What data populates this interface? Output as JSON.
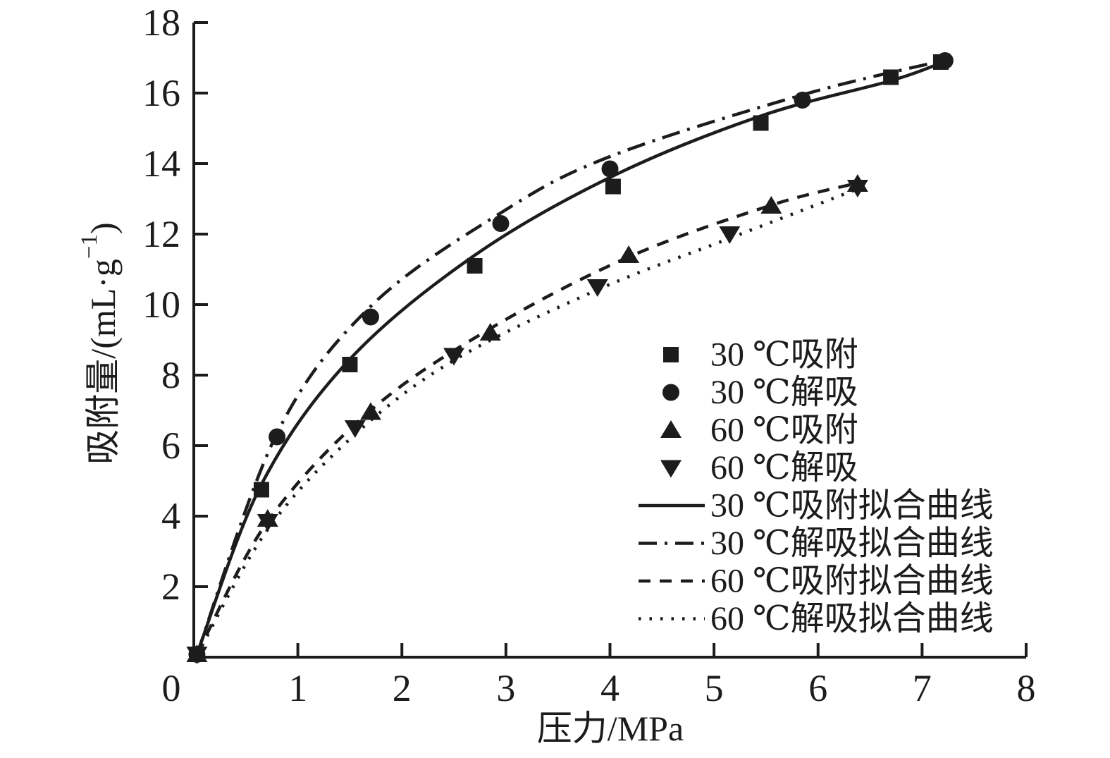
{
  "figure": {
    "background": "#ffffff",
    "ink_color": "#1c1c1c"
  },
  "chart_data": {
    "type": "scatter",
    "title": "",
    "xlabel": "压力/MPa",
    "ylabel": "吸附量/(mL·g⁻¹)",
    "ylabel_parts": {
      "base": "吸附量/(mL·g",
      "sup": "−1",
      "close": ")"
    },
    "xlim": [
      0,
      8
    ],
    "ylim": [
      0,
      18
    ],
    "xticks": [
      0,
      1,
      2,
      3,
      4,
      5,
      6,
      7,
      8
    ],
    "yticks": [
      2,
      4,
      6,
      8,
      10,
      12,
      14,
      16,
      18
    ],
    "grid": false,
    "legend_position": "inside-right-middle",
    "series": [
      {
        "name": "30 ℃吸附",
        "marker": "square",
        "points": [
          [
            0.03,
            0.08
          ],
          [
            0.65,
            4.75
          ],
          [
            1.5,
            8.3
          ],
          [
            2.7,
            11.1
          ],
          [
            4.03,
            13.35
          ],
          [
            5.45,
            15.15
          ],
          [
            6.7,
            16.45
          ],
          [
            7.18,
            16.88
          ]
        ]
      },
      {
        "name": "30 ℃解吸",
        "marker": "circle",
        "points": [
          [
            0.03,
            0.08
          ],
          [
            0.8,
            6.25
          ],
          [
            1.7,
            9.65
          ],
          [
            2.95,
            12.3
          ],
          [
            4.0,
            13.85
          ],
          [
            5.85,
            15.8
          ],
          [
            7.22,
            16.92
          ]
        ]
      },
      {
        "name": "60 ℃吸附",
        "marker": "triangle-up",
        "points": [
          [
            0.03,
            0.08
          ],
          [
            0.71,
            3.92
          ],
          [
            1.7,
            6.95
          ],
          [
            2.85,
            9.2
          ],
          [
            4.18,
            11.4
          ],
          [
            5.55,
            12.8
          ],
          [
            6.38,
            13.42
          ]
        ]
      },
      {
        "name": "60 ℃解吸",
        "marker": "triangle-down",
        "points": [
          [
            0.03,
            0.08
          ],
          [
            0.71,
            3.84
          ],
          [
            1.55,
            6.5
          ],
          [
            2.5,
            8.55
          ],
          [
            3.88,
            10.5
          ],
          [
            5.15,
            12.0
          ],
          [
            6.38,
            13.32
          ]
        ]
      }
    ],
    "fit_curves": [
      {
        "name": "30 ℃吸附拟合曲线",
        "style": "solid",
        "points": [
          [
            0.03,
            0.08
          ],
          [
            0.65,
            4.9
          ],
          [
            1.5,
            8.45
          ],
          [
            2.7,
            11.4
          ],
          [
            4.03,
            13.65
          ],
          [
            5.45,
            15.35
          ],
          [
            6.7,
            16.35
          ],
          [
            7.18,
            16.85
          ]
        ]
      },
      {
        "name": "30 ℃解吸拟合曲线",
        "style": "dashdot",
        "points": [
          [
            0.03,
            0.08
          ],
          [
            0.8,
            6.35
          ],
          [
            1.7,
            9.95
          ],
          [
            2.95,
            12.6
          ],
          [
            4.0,
            14.2
          ],
          [
            5.85,
            15.95
          ],
          [
            7.2,
            16.92
          ]
        ]
      },
      {
        "name": "60 ℃吸附拟合曲线",
        "style": "dashed",
        "points": [
          [
            0.03,
            0.08
          ],
          [
            0.71,
            3.85
          ],
          [
            1.7,
            7.0
          ],
          [
            2.85,
            9.32
          ],
          [
            4.18,
            11.35
          ],
          [
            5.55,
            12.82
          ],
          [
            6.38,
            13.45
          ]
        ]
      },
      {
        "name": "60 ℃解吸拟合曲线",
        "style": "dotted",
        "points": [
          [
            0.03,
            0.05
          ],
          [
            0.71,
            3.62
          ],
          [
            1.55,
            6.32
          ],
          [
            2.5,
            8.42
          ],
          [
            3.88,
            10.42
          ],
          [
            5.15,
            11.88
          ],
          [
            6.38,
            13.28
          ]
        ]
      }
    ],
    "legend": [
      {
        "label": "30 ℃吸附",
        "swatch": "square"
      },
      {
        "label": "30 ℃解吸",
        "swatch": "circle"
      },
      {
        "label": "60 ℃吸附",
        "swatch": "triangle-up"
      },
      {
        "label": "60 ℃解吸",
        "swatch": "triangle-down"
      },
      {
        "label": "30 ℃吸附拟合曲线",
        "swatch": "line-solid"
      },
      {
        "label": "30 ℃解吸拟合曲线",
        "swatch": "line-dashdot"
      },
      {
        "label": "60 ℃吸附拟合曲线",
        "swatch": "line-dashed"
      },
      {
        "label": "60 ℃解吸拟合曲线",
        "swatch": "line-dotted"
      }
    ]
  }
}
